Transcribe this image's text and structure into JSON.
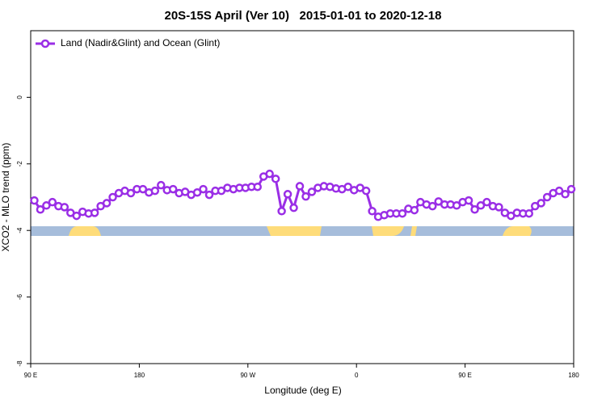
{
  "chart_data": {
    "type": "line",
    "title": "20S-15S April (Ver 10)   2015-01-01 to 2020-12-18",
    "xlabel": "Longitude (deg E)",
    "ylabel": "XCO2 - MLO trend (ppm)",
    "xlim": [
      90,
      540
    ],
    "xticks": [
      {
        "value": 90,
        "label": "90 E"
      },
      {
        "value": 180,
        "label": "180"
      },
      {
        "value": 270,
        "label": "90 W"
      },
      {
        "value": 360,
        "label": "0"
      },
      {
        "value": 450,
        "label": "90 E"
      },
      {
        "value": 540,
        "label": "180"
      }
    ],
    "ylim": [
      -8,
      2
    ],
    "yticks": [
      -8,
      -6,
      -4,
      -2,
      0
    ],
    "legend": "upper left",
    "x": [
      93,
      98,
      103,
      108,
      113,
      118,
      123,
      128,
      133,
      138,
      143,
      148,
      153,
      158,
      163,
      168,
      173,
      178,
      183,
      188,
      193,
      198,
      203,
      208,
      213,
      218,
      223,
      228,
      233,
      238,
      243,
      248,
      253,
      258,
      263,
      268,
      273,
      278,
      283,
      288,
      293,
      298,
      303,
      308,
      313,
      318,
      323,
      328,
      333,
      338,
      343,
      348,
      353,
      358,
      363,
      368,
      373,
      378,
      383,
      388,
      393,
      398,
      403,
      408,
      413,
      418,
      423,
      428,
      433,
      438,
      443,
      448,
      453,
      458,
      463,
      468,
      473,
      478,
      483,
      488,
      493,
      498,
      503,
      508,
      513,
      518,
      523,
      528,
      533,
      538
    ],
    "series": [
      {
        "name": "Land (Nadir&Glint) and Ocean (Glint)",
        "color": "#9a2ee6",
        "values": [
          -3.1,
          -3.37,
          -3.25,
          -3.15,
          -3.27,
          -3.3,
          -3.47,
          -3.56,
          -3.44,
          -3.49,
          -3.47,
          -3.27,
          -3.18,
          -3.0,
          -2.88,
          -2.81,
          -2.88,
          -2.76,
          -2.76,
          -2.86,
          -2.81,
          -2.64,
          -2.79,
          -2.76,
          -2.88,
          -2.84,
          -2.93,
          -2.86,
          -2.76,
          -2.93,
          -2.81,
          -2.81,
          -2.72,
          -2.76,
          -2.72,
          -2.72,
          -2.69,
          -2.69,
          -2.38,
          -2.3,
          -2.45,
          -3.42,
          -2.91,
          -3.32,
          -2.67,
          -2.98,
          -2.84,
          -2.72,
          -2.67,
          -2.69,
          -2.74,
          -2.76,
          -2.69,
          -2.79,
          -2.72,
          -2.81,
          -3.42,
          -3.59,
          -3.54,
          -3.49,
          -3.49,
          -3.49,
          -3.35,
          -3.39,
          -3.15,
          -3.22,
          -3.27,
          -3.13,
          -3.22,
          -3.22,
          -3.25,
          -3.15,
          -3.1,
          -3.37,
          -3.25,
          -3.15,
          -3.27,
          -3.3,
          -3.47,
          -3.56,
          -3.47,
          -3.49,
          -3.49,
          -3.27,
          -3.18,
          -3.0,
          -2.88,
          -2.81,
          -2.91,
          -2.76
        ]
      }
    ]
  }
}
